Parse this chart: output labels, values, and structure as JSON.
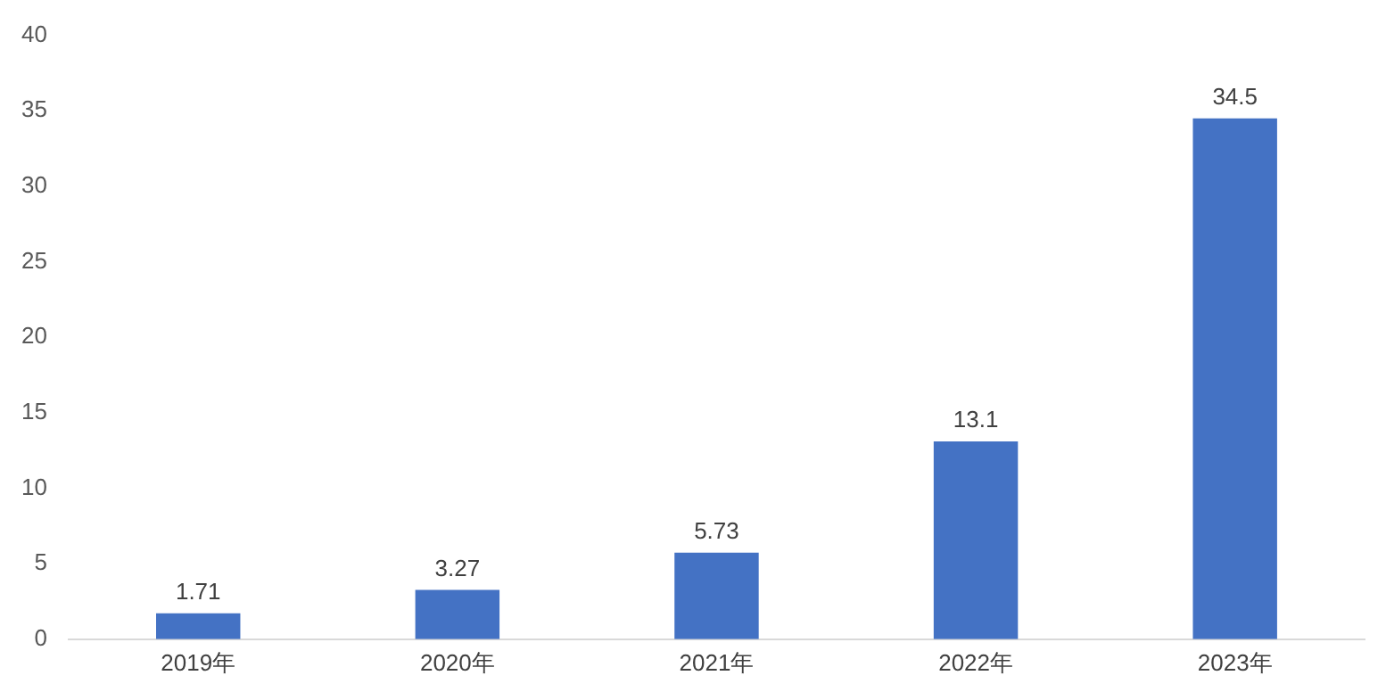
{
  "chart_data": {
    "type": "bar",
    "categories": [
      "2019年",
      "2020年",
      "2021年",
      "2022年",
      "2023年"
    ],
    "values": [
      1.71,
      3.27,
      5.73,
      13.1,
      34.5
    ],
    "color": "#4472c4",
    "ylim": [
      0,
      40
    ],
    "yticks": [
      0,
      5,
      10,
      15,
      20,
      25,
      30,
      35,
      40
    ],
    "grid": false,
    "legend": false,
    "data_labels": true
  }
}
